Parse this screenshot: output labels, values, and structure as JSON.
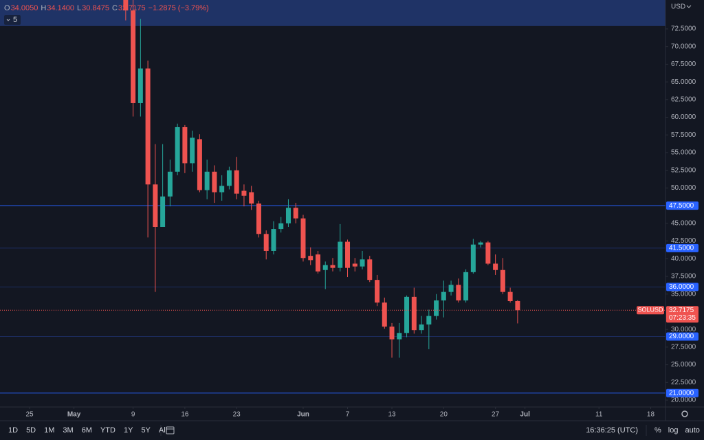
{
  "chart_data": {
    "type": "candlestick",
    "currency": "USD",
    "legend": {
      "items": [
        {
          "key": "O",
          "value": "34.0050"
        },
        {
          "key": "H",
          "value": "34.1400"
        },
        {
          "key": "L",
          "value": "30.8475"
        },
        {
          "key": "C",
          "value": "32.7175"
        }
      ],
      "change": "−1.2875 (−3.79%)",
      "indicator": "5"
    },
    "x": [
      "05-08",
      "05-09",
      "05-10",
      "05-11",
      "05-12",
      "05-13",
      "05-14",
      "05-15",
      "05-16",
      "05-17",
      "05-18",
      "05-19",
      "05-20",
      "05-21",
      "05-22",
      "05-23",
      "05-24",
      "05-25",
      "05-26",
      "05-27",
      "05-28",
      "05-29",
      "05-30",
      "05-31",
      "06-01",
      "06-02",
      "06-03",
      "06-04",
      "06-05",
      "06-06",
      "06-07",
      "06-08",
      "06-09",
      "06-10",
      "06-11",
      "06-12",
      "06-13",
      "06-14",
      "06-15",
      "06-16",
      "06-17",
      "06-18",
      "06-19",
      "06-20",
      "06-21",
      "06-22",
      "06-23",
      "06-24",
      "06-25",
      "06-26",
      "06-27",
      "06-28",
      "06-29",
      "06-30"
    ],
    "open": [
      79.0,
      75.1,
      62.0,
      66.9,
      50.5,
      44.5,
      48.8,
      52.3,
      58.6,
      53.5,
      56.9,
      49.7,
      52.3,
      49.4,
      50.3,
      52.5,
      49.6,
      49.4,
      47.8,
      43.5,
      41.1,
      44.2,
      45.0,
      47.2,
      45.7,
      40.4,
      40.6,
      38.4,
      39.1,
      38.7,
      42.4,
      39.3,
      38.9,
      39.9,
      37.0,
      33.8,
      30.4,
      28.6,
      29.5,
      34.6,
      29.9,
      30.7,
      31.9,
      34.1,
      35.3,
      36.3,
      34.1,
      38.1,
      42.0,
      42.3,
      39.3,
      38.4,
      35.3,
      34.005
    ],
    "high": [
      80.5,
      77.5,
      73.9,
      68.0,
      56.2,
      56.2,
      54.0,
      59.1,
      58.9,
      58.1,
      57.6,
      54.0,
      53.2,
      51.8,
      53.0,
      54.4,
      50.5,
      50.3,
      48.2,
      44.0,
      45.3,
      45.9,
      48.4,
      47.9,
      46.2,
      41.6,
      41.1,
      39.6,
      40.1,
      44.9,
      42.7,
      40.1,
      41.1,
      40.4,
      37.7,
      34.5,
      30.9,
      30.9,
      34.8,
      35.9,
      31.9,
      32.8,
      35.0,
      36.9,
      36.9,
      37.2,
      38.5,
      42.8,
      42.5,
      42.5,
      40.6,
      40.1,
      35.9,
      34.14
    ],
    "low": [
      73.7,
      60.1,
      60.1,
      43.0,
      35.3,
      44.5,
      47.4,
      51.8,
      52.1,
      52.3,
      49.4,
      48.4,
      47.9,
      48.2,
      49.8,
      48.4,
      47.4,
      46.9,
      43.0,
      39.9,
      40.6,
      43.7,
      44.5,
      45.0,
      39.6,
      39.1,
      37.9,
      35.7,
      38.2,
      38.2,
      37.4,
      38.2,
      38.5,
      36.7,
      33.3,
      30.1,
      26.0,
      26.0,
      28.9,
      29.4,
      29.4,
      27.2,
      31.4,
      31.7,
      34.8,
      33.8,
      33.8,
      37.9,
      41.6,
      39.1,
      37.7,
      35.0,
      33.8,
      30.8475
    ],
    "close": [
      75.1,
      62.0,
      66.9,
      50.5,
      44.5,
      48.8,
      52.3,
      58.6,
      53.5,
      57.1,
      49.7,
      52.3,
      49.4,
      50.3,
      52.5,
      49.2,
      48.9,
      47.8,
      43.5,
      41.1,
      44.2,
      45.0,
      47.2,
      45.7,
      40.1,
      39.8,
      38.2,
      39.1,
      38.7,
      42.4,
      38.7,
      38.9,
      39.9,
      37.0,
      33.8,
      30.4,
      28.6,
      29.5,
      34.6,
      29.9,
      30.7,
      31.9,
      34.1,
      35.3,
      36.3,
      34.1,
      38.1,
      42.0,
      42.3,
      39.3,
      38.4,
      35.3,
      34.0,
      32.7175
    ],
    "up_color": "#26a69a",
    "down_color": "#ef5350",
    "xlim": [
      "04-21",
      "07-20"
    ],
    "xticks": [
      {
        "value": "04-25",
        "label": "25"
      },
      {
        "value": "05-01",
        "label": "May"
      },
      {
        "value": "05-09",
        "label": "9"
      },
      {
        "value": "05-16",
        "label": "16"
      },
      {
        "value": "05-23",
        "label": "23"
      },
      {
        "value": "06-01",
        "label": "Jun"
      },
      {
        "value": "06-07",
        "label": "7"
      },
      {
        "value": "06-13",
        "label": "13"
      },
      {
        "value": "06-20",
        "label": "20"
      },
      {
        "value": "06-27",
        "label": "27"
      },
      {
        "value": "07-01",
        "label": "Jul"
      },
      {
        "value": "07-11",
        "label": "11"
      },
      {
        "value": "07-18",
        "label": "18"
      }
    ],
    "ylim": [
      19.03,
      76.58
    ],
    "yticks": [
      {
        "value": 20,
        "label": "20.0000"
      },
      {
        "value": 22.5,
        "label": "22.5000"
      },
      {
        "value": 25,
        "label": "25.0000"
      },
      {
        "value": 27.5,
        "label": "27.5000"
      },
      {
        "value": 30,
        "label": "30.0000"
      },
      {
        "value": 32.5,
        "label": "32.5000"
      },
      {
        "value": 35,
        "label": "35.0000"
      },
      {
        "value": 37.5,
        "label": "37.5000"
      },
      {
        "value": 40,
        "label": "40.0000"
      },
      {
        "value": 42.5,
        "label": "42.5000"
      },
      {
        "value": 45,
        "label": "45.0000"
      },
      {
        "value": 47.5,
        "label": "47.5000"
      },
      {
        "value": 50,
        "label": "50.0000"
      },
      {
        "value": 52.5,
        "label": "52.5000"
      },
      {
        "value": 55,
        "label": "55.0000"
      },
      {
        "value": 57.5,
        "label": "57.5000"
      },
      {
        "value": 60,
        "label": "60.0000"
      },
      {
        "value": 62.5,
        "label": "62.5000"
      },
      {
        "value": 65,
        "label": "65.0000"
      },
      {
        "value": 67.5,
        "label": "67.5000"
      },
      {
        "value": 70,
        "label": "70.0000"
      },
      {
        "value": 72.5,
        "label": "72.5000"
      }
    ],
    "grid": false,
    "zone": {
      "from": 72.9,
      "color": "#1f3366"
    },
    "levels": [
      {
        "value": 47.5,
        "label": "47.5000",
        "color": "#2962ff"
      },
      {
        "value": 41.5,
        "label": "41.5000",
        "color": "#1c2c5e"
      },
      {
        "value": 36,
        "label": "36.0000",
        "color": "#1c2c5e"
      },
      {
        "value": 29,
        "label": "29.0000",
        "color": "#1c2c5e"
      },
      {
        "value": 21,
        "label": "21.0000",
        "color": "#2962ff"
      }
    ],
    "last": {
      "value": 32.7175,
      "label": "32.7175",
      "countdown": "07:23:35",
      "symbol": "SOLUSD",
      "color": "#ef5350"
    },
    "toolbar": {
      "ranges": [
        "1D",
        "5D",
        "1M",
        "3M",
        "6M",
        "YTD",
        "1Y",
        "5Y",
        "All"
      ],
      "time": "16:36:25 (UTC)",
      "options": [
        "%",
        "log",
        "auto"
      ]
    }
  }
}
